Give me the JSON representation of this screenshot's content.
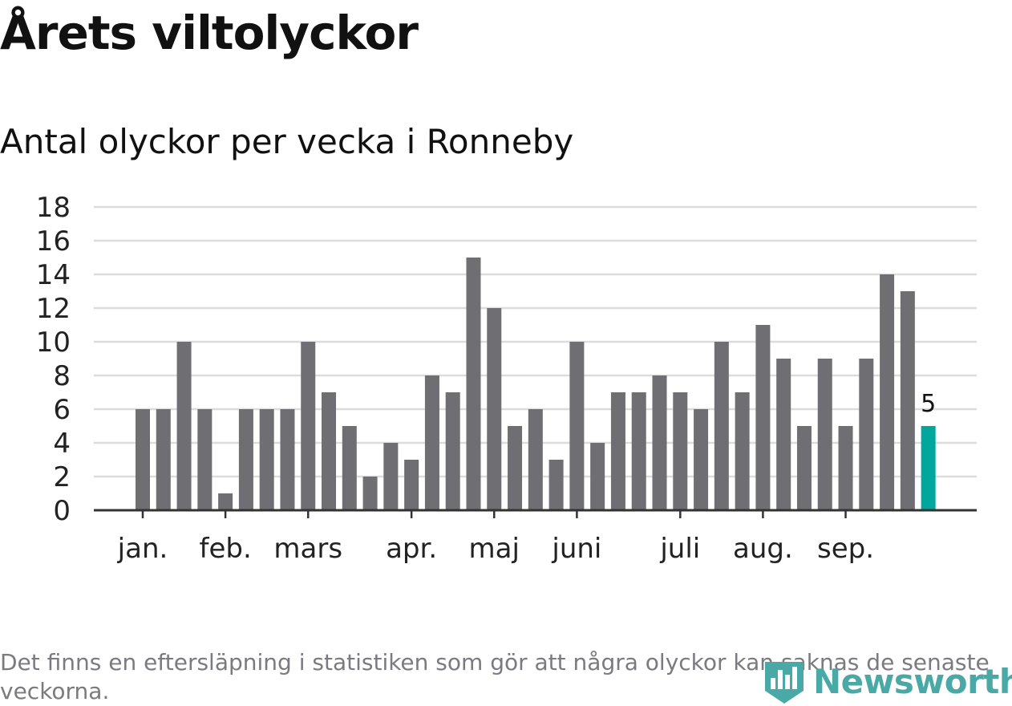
{
  "title": "Årets viltolyckor",
  "subtitle": "Antal olyckor per vecka i Ronneby",
  "footnote": "Det finns en eftersläpning i statistiken som gör att några olyckor kan saknas de senaste veckorna.",
  "logo": {
    "text": "Newsworthy",
    "icon": "bar-chart-badge-icon"
  },
  "colors": {
    "bar": "#6e6e73",
    "highlight": "#00a79d",
    "grid": "#dcdcdc",
    "axis": "#333333",
    "logo": "#4aa9a6"
  },
  "chart_data": {
    "type": "bar",
    "values": [
      6,
      6,
      10,
      6,
      1,
      6,
      6,
      6,
      10,
      7,
      5,
      2,
      4,
      3,
      8,
      7,
      15,
      12,
      5,
      6,
      3,
      10,
      4,
      7,
      7,
      8,
      7,
      6,
      10,
      7,
      11,
      9,
      5,
      9,
      5,
      9,
      14,
      13,
      5
    ],
    "highlight_index": 38,
    "highlight_label": "5",
    "ylim": [
      0,
      18
    ],
    "yticks": [
      "0",
      "2",
      "4",
      "6",
      "8",
      "10",
      "12",
      "14",
      "16",
      "18"
    ],
    "month_labels": [
      {
        "label": "jan.",
        "week_index": 0
      },
      {
        "label": "feb.",
        "week_index": 4
      },
      {
        "label": "mars",
        "week_index": 8
      },
      {
        "label": "apr.",
        "week_index": 13
      },
      {
        "label": "maj",
        "week_index": 17
      },
      {
        "label": "juni",
        "week_index": 21
      },
      {
        "label": "juli",
        "week_index": 26
      },
      {
        "label": "aug.",
        "week_index": 30
      },
      {
        "label": "sep.",
        "week_index": 34
      }
    ],
    "grid": true,
    "legend": "none"
  }
}
